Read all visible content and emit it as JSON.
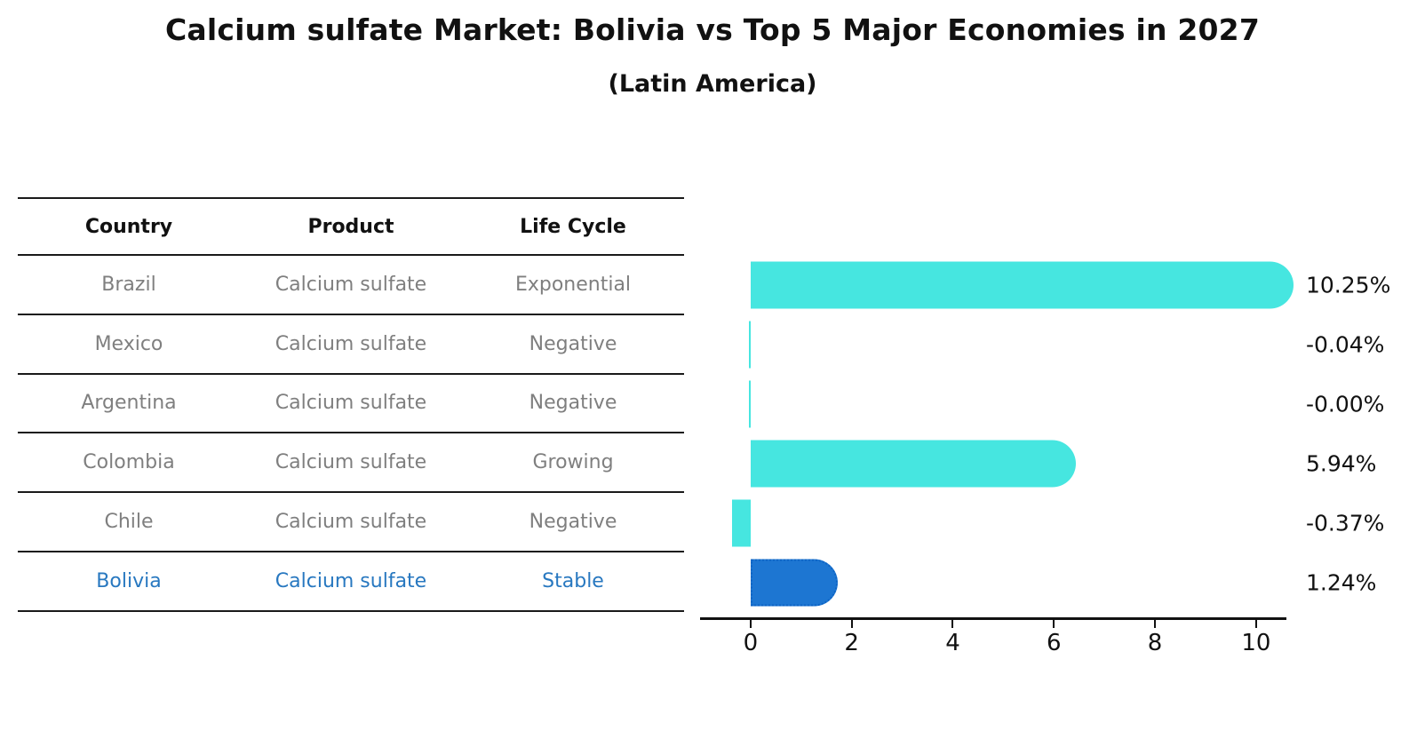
{
  "title": "Calcium sulfate Market: Bolivia vs Top 5 Major Economies in 2027",
  "subtitle": "(Latin America)",
  "table": {
    "headers": [
      "Country",
      "Product",
      "Life Cycle"
    ],
    "rows": [
      {
        "country": "Brazil",
        "product": "Calcium sulfate",
        "life_cycle": "Exponential",
        "highlight": false
      },
      {
        "country": "Mexico",
        "product": "Calcium sulfate",
        "life_cycle": "Negative",
        "highlight": false
      },
      {
        "country": "Argentina",
        "product": "Calcium sulfate",
        "life_cycle": "Negative",
        "highlight": false
      },
      {
        "country": "Colombia",
        "product": "Calcium sulfate",
        "life_cycle": "Growing",
        "highlight": false
      },
      {
        "country": "Chile",
        "product": "Calcium sulfate",
        "life_cycle": "Negative",
        "highlight": false
      },
      {
        "country": "Bolivia",
        "product": "Calcium sulfate",
        "life_cycle": "Stable",
        "highlight": true
      }
    ]
  },
  "chart_data": {
    "type": "bar",
    "orientation": "horizontal",
    "title": "Calcium sulfate Market: Bolivia vs Top 5 Major Economies in 2027",
    "subtitle": "(Latin America)",
    "categories": [
      "Brazil",
      "Mexico",
      "Argentina",
      "Colombia",
      "Chile",
      "Bolivia"
    ],
    "values": [
      10.25,
      -0.04,
      -0.0,
      5.94,
      -0.37,
      1.24
    ],
    "value_labels": [
      "10.25%",
      "-0.04%",
      "-0.00%",
      "5.94%",
      "-0.37%",
      "1.24%"
    ],
    "x_ticks": [
      0,
      2,
      4,
      6,
      8,
      10
    ],
    "xlim": [
      -1.0,
      10.6
    ],
    "grid": false,
    "legend": false,
    "bar_color": "#46E6E0",
    "highlight_bar_color": "#1D76D2",
    "highlight_bar_edge": "#0d63c4",
    "highlight_index": 5
  },
  "colors": {
    "ink": "#111111",
    "table_line": "#1a1a1a",
    "table_text_gray": "#7f7f7f",
    "highlight_text": "#2878C0"
  }
}
